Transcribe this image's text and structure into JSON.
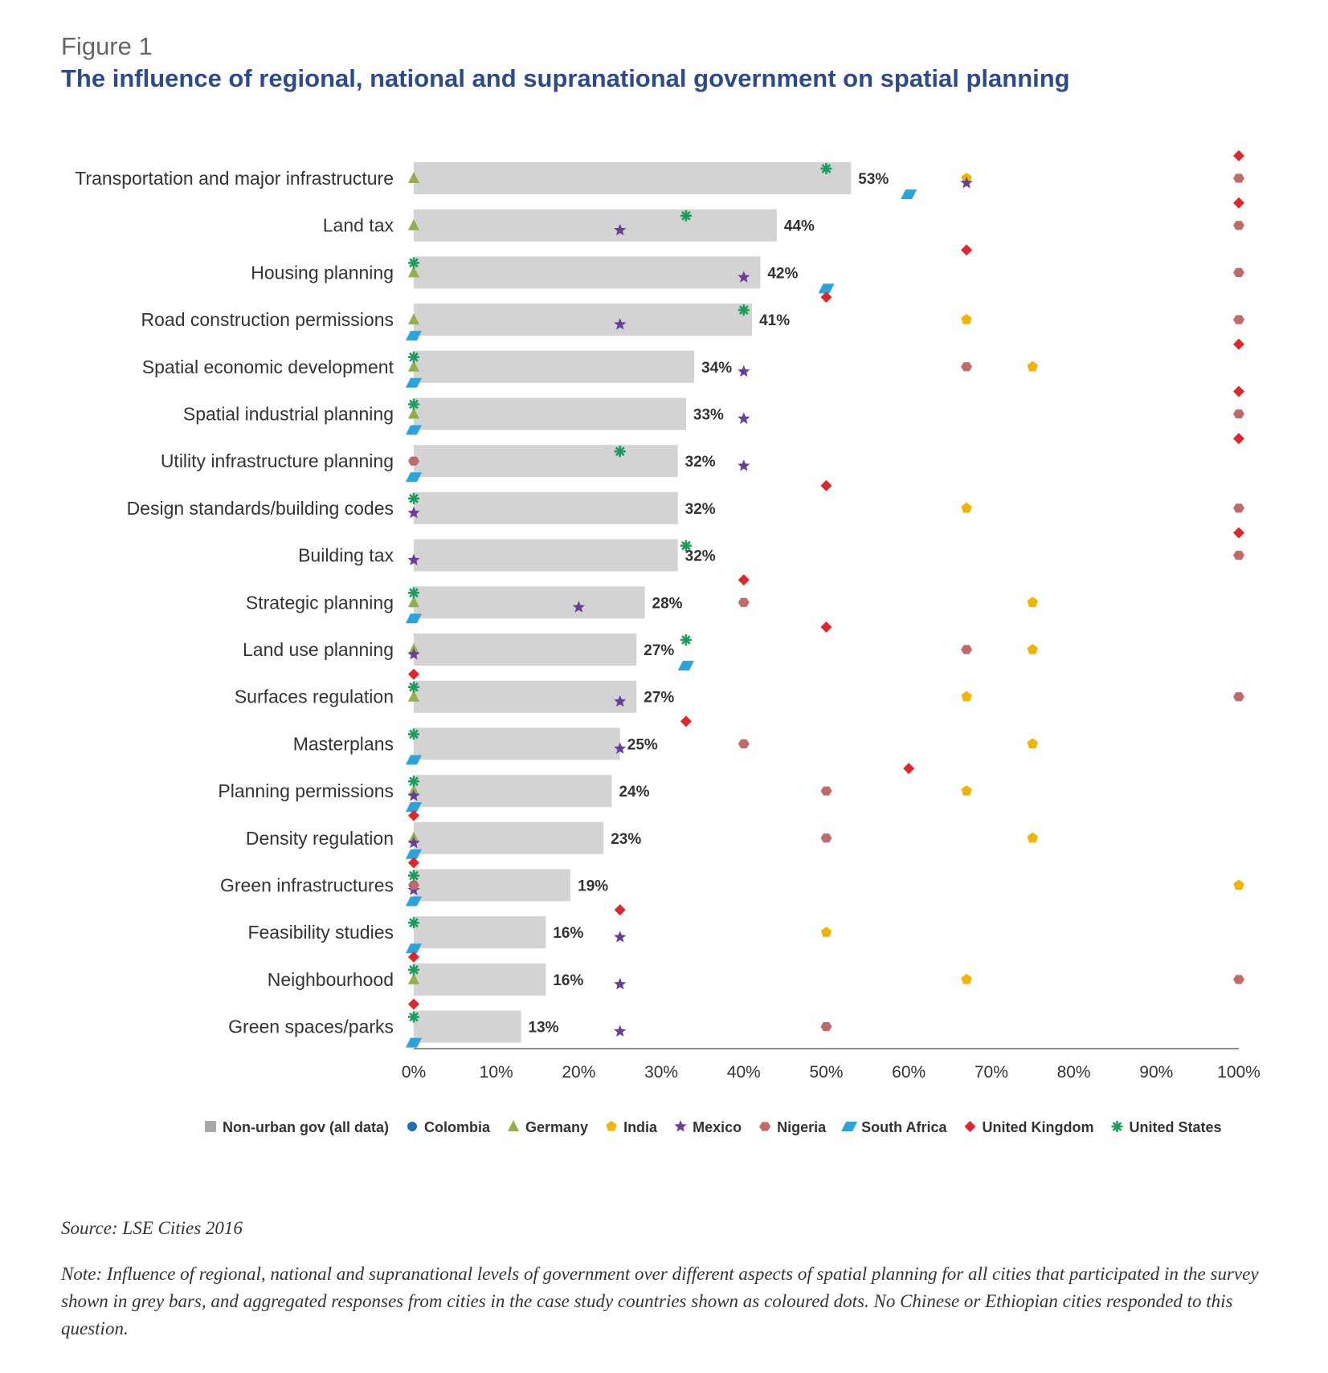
{
  "figure": {
    "label": "Figure 1",
    "title": "The influence of regional, national and supranational government on spatial planning"
  },
  "chart_data": {
    "type": "bar",
    "orientation": "horizontal",
    "categories": [
      "Transportation and major infrastructure",
      "Land tax",
      "Housing planning",
      "Road construction permissions",
      "Spatial economic development",
      "Spatial industrial planning",
      "Utility infrastructure planning",
      "Design standards/building codes",
      "Building tax",
      "Strategic planning",
      "Land use planning",
      "Surfaces regulation",
      "Masterplans",
      "Planning permissions",
      "Density regulation",
      "Green infrastructures",
      "Feasibility studies",
      "Neighbourhood",
      "Green spaces/parks"
    ],
    "bar_series": {
      "name": "Non-urban gov (all data)",
      "color": "#d3d3d3",
      "values": [
        53,
        44,
        42,
        41,
        34,
        33,
        32,
        32,
        32,
        28,
        27,
        27,
        25,
        24,
        23,
        19,
        16,
        16,
        13
      ],
      "labels": [
        "53%",
        "44%",
        "42%",
        "41%",
        "34%",
        "33%",
        "32%",
        "32%",
        "32%",
        "28%",
        "27%",
        "27%",
        "25%",
        "24%",
        "23%",
        "19%",
        "16%",
        "16%",
        "13%"
      ]
    },
    "point_series": [
      {
        "name": "Colombia",
        "color": "#1f6fb5",
        "marker": "circle",
        "values": [
          null,
          null,
          null,
          null,
          null,
          null,
          null,
          null,
          null,
          null,
          null,
          null,
          null,
          null,
          null,
          null,
          null,
          null,
          null
        ]
      },
      {
        "name": "Germany",
        "color": "#8fb04a",
        "marker": "triangle",
        "values": [
          0,
          0,
          0,
          0,
          0,
          0,
          null,
          null,
          null,
          0,
          0,
          0,
          null,
          0,
          0,
          null,
          null,
          0,
          null
        ]
      },
      {
        "name": "India",
        "color": "#f2b400",
        "marker": "pentagon",
        "values": [
          67,
          null,
          null,
          67,
          75,
          null,
          null,
          67,
          null,
          75,
          75,
          67,
          75,
          67,
          75,
          100,
          50,
          67,
          null
        ]
      },
      {
        "name": "Mexico",
        "color": "#6a3d9a",
        "marker": "star",
        "values": [
          67,
          25,
          40,
          25,
          40,
          40,
          40,
          0,
          0,
          20,
          0,
          25,
          25,
          0,
          0,
          0,
          25,
          25,
          25
        ]
      },
      {
        "name": "Nigeria",
        "color": "#c06a6a",
        "marker": "hexagon",
        "values": [
          100,
          100,
          100,
          100,
          67,
          100,
          0,
          100,
          100,
          40,
          67,
          100,
          40,
          50,
          50,
          0,
          null,
          100,
          50
        ]
      },
      {
        "name": "South Africa",
        "color": "#2ba3dc",
        "marker": "parallelogram",
        "values": [
          60,
          null,
          50,
          0,
          0,
          0,
          0,
          null,
          null,
          0,
          33,
          null,
          0,
          0,
          0,
          0,
          0,
          null,
          0
        ]
      },
      {
        "name": "United Kingdom",
        "color": "#e0262a",
        "marker": "diamond",
        "values": [
          100,
          100,
          67,
          50,
          100,
          100,
          100,
          50,
          100,
          40,
          50,
          0,
          33,
          60,
          0,
          0,
          25,
          0,
          0
        ]
      },
      {
        "name": "United States",
        "color": "#1a9e5a",
        "marker": "asterisk",
        "values": [
          50,
          33,
          0,
          40,
          0,
          0,
          25,
          0,
          33,
          0,
          33,
          0,
          0,
          0,
          null,
          0,
          0,
          0,
          0
        ]
      }
    ],
    "x_axis": {
      "min": 0,
      "max": 100,
      "ticks": [
        "0%",
        "10%",
        "20%",
        "30%",
        "40%",
        "50%",
        "60%",
        "70%",
        "80%",
        "90%",
        "100%"
      ]
    },
    "legend": {
      "placement": "bottom"
    },
    "grid": false
  },
  "source": "Source: LSE Cities 2016",
  "note": "Note: Influence of regional, national and supranational levels of government over different aspects of spatial planning for all cities that participated in the survey shown in grey bars, and aggregated responses from cities in the case study countries shown as coloured dots. No Chinese or Ethiopian cities responded to this question."
}
